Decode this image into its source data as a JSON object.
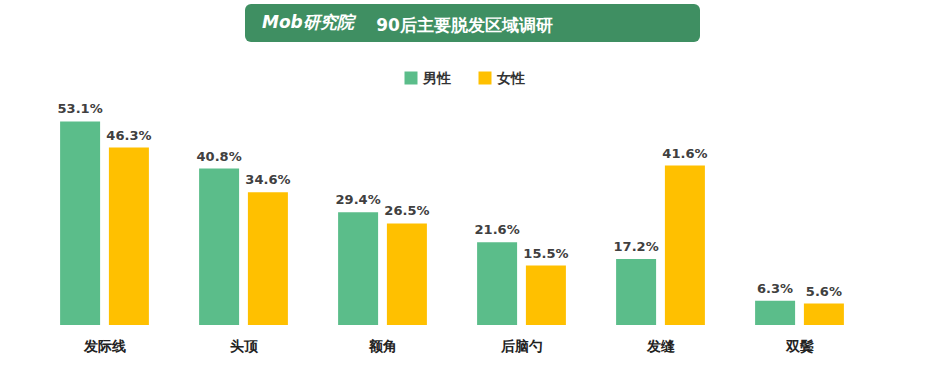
{
  "chart_data": {
    "type": "bar",
    "title": "90后主要脱发区域调研",
    "annotations": [
      "Mob研究院"
    ],
    "categories": [
      "发际线",
      "头顶",
      "额角",
      "后脑勺",
      "发缝",
      "双鬓"
    ],
    "series": [
      {
        "name": "男性",
        "color": "#5bbd8a",
        "values": [
          53.1,
          40.8,
          29.4,
          21.6,
          17.2,
          6.3
        ],
        "value_labels": [
          "53.1%",
          "40.8%",
          "29.4%",
          "21.6%",
          "17.2%",
          "6.3%"
        ]
      },
      {
        "name": "女性",
        "color": "#ffc000",
        "values": [
          46.3,
          34.6,
          26.5,
          15.5,
          41.6,
          5.6
        ],
        "value_labels": [
          "46.3%",
          "34.6%",
          "26.5%",
          "15.5%",
          "41.6%",
          "5.6%"
        ]
      }
    ],
    "ylim": [
      0,
      60
    ],
    "grid": false,
    "legend": "top",
    "data_labels": true,
    "tick_labels": "x"
  }
}
